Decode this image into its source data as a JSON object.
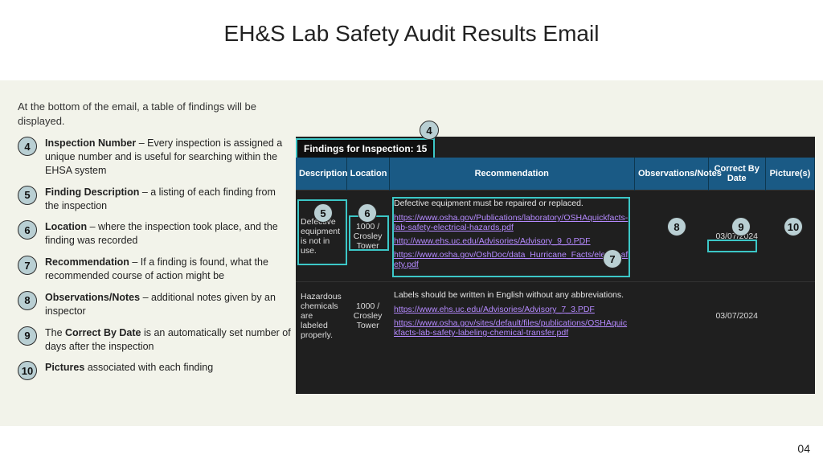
{
  "title": "EH&S Lab Safety Audit Results Email",
  "intro": "At the bottom of the email, a table of findings will be displayed.",
  "legend": [
    {
      "n": "4",
      "bold": "Inspection Number",
      "rest": " – Every inspection is assigned a unique number and is useful for searching within the EHSA system"
    },
    {
      "n": "5",
      "bold": "Finding Description",
      "rest": " – a listing of each finding from the inspection"
    },
    {
      "n": "6",
      "bold": "Location",
      "rest": " – where the inspection took place, and the finding was recorded"
    },
    {
      "n": "7",
      "bold": "Recommendation",
      "rest": " – If a finding is found, what the recommended course of action might be"
    },
    {
      "n": "8",
      "bold": "Observations/Notes",
      "rest": " – additional notes given by an inspector"
    },
    {
      "n": "9",
      "prefix": "The ",
      "bold": "Correct By Date",
      "rest": " is an automatically set number of days after the inspection"
    },
    {
      "n": "10",
      "bold": "Pictures",
      "rest": " associated with each finding"
    }
  ],
  "panel": {
    "header_prefix": "Findings for Inspection: ",
    "inspection_number": "15",
    "columns": [
      "Description",
      "Location",
      "Recommendation",
      "Observations/Notes",
      "Correct By Date",
      "Picture(s)"
    ],
    "col_widths": [
      "62px",
      "52px",
      "300px",
      "90px",
      "70px",
      "60px"
    ],
    "rows": [
      {
        "description": "Defective equipment is not in use.",
        "location": "1000 / Crosley Tower",
        "rec_text": "Defective equipment must be repaired or replaced.",
        "links": [
          "https://www.osha.gov/Publications/laboratory/OSHAquickfacts-lab-safety-electrical-hazards.pdf",
          "http://www.ehs.uc.edu/Advisories/Advisory_9_0.PDF",
          "https://www.osha.gov/OshDoc/data_Hurricane_Facts/elect_safety.pdf"
        ],
        "observations": "",
        "correct_by": "03/07/2024",
        "pictures": ""
      },
      {
        "description": "Hazardous chemicals are labeled properly.",
        "location": "1000 / Crosley Tower",
        "rec_text": "Labels should be written in English without any abbreviations.",
        "links": [
          "https://www.ehs.uc.edu/Advisories/Advisory_7_3.PDF",
          "https://www.osha.gov/sites/default/files/publications/OSHAquickfacts-lab-safety-labeling-chemical-transfer.pdf"
        ],
        "observations": "",
        "correct_by": "03/07/2024",
        "pictures": ""
      }
    ]
  },
  "callouts": {
    "c4": "4",
    "c5": "5",
    "c6": "6",
    "c7": "7",
    "c8": "8",
    "c9": "9",
    "c10": "10"
  },
  "page_number": "04",
  "colors": {
    "band_bg": "#f2f3ea",
    "circle_bg": "#b9cfd3",
    "th_bg": "#1a5a85",
    "panel_bg": "#1f1f1f",
    "link": "#b58aff",
    "highlight": "#3cc7c7"
  }
}
